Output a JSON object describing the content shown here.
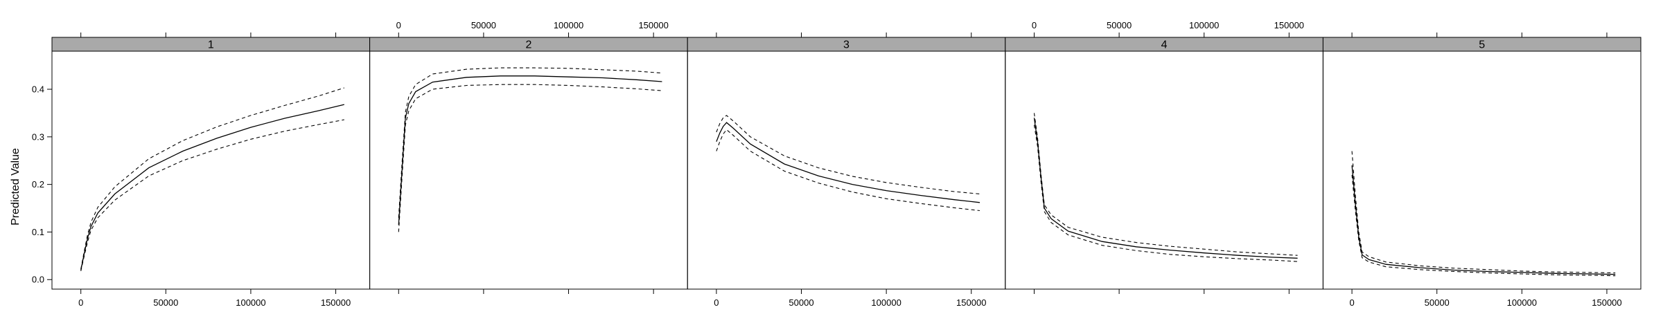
{
  "chart_data": {
    "type": "line",
    "ylabel": "Predicted Value",
    "xlabel": "",
    "xlim": [
      -17000,
      170000
    ],
    "ylim": [
      -0.02,
      0.48
    ],
    "x_ticks": [
      0,
      50000,
      100000,
      150000
    ],
    "x_tick_labels": [
      "0",
      "50000",
      "100000",
      "150000"
    ],
    "y_ticks": [
      0.0,
      0.1,
      0.2,
      0.3,
      0.4
    ],
    "y_tick_labels": [
      "0.0",
      "0.1",
      "0.2",
      "0.3",
      "0.4"
    ],
    "x": [
      0,
      2000,
      4000,
      6000,
      10000,
      20000,
      40000,
      60000,
      80000,
      100000,
      120000,
      140000,
      155000
    ],
    "panels": [
      {
        "label": "1",
        "x_axis": "bottom",
        "fit": [
          0.02,
          0.055,
          0.088,
          0.112,
          0.14,
          0.18,
          0.235,
          0.27,
          0.297,
          0.32,
          0.339,
          0.355,
          0.368
        ],
        "upper": [
          0.022,
          0.06,
          0.095,
          0.121,
          0.152,
          0.195,
          0.254,
          0.292,
          0.321,
          0.345,
          0.366,
          0.386,
          0.403
        ],
        "lower": [
          0.018,
          0.05,
          0.08,
          0.104,
          0.13,
          0.167,
          0.218,
          0.25,
          0.274,
          0.295,
          0.312,
          0.326,
          0.336
        ]
      },
      {
        "label": "2",
        "x_axis": "top",
        "fit": [
          0.115,
          0.23,
          0.34,
          0.37,
          0.395,
          0.415,
          0.425,
          0.428,
          0.428,
          0.426,
          0.424,
          0.42,
          0.416
        ],
        "upper": [
          0.13,
          0.245,
          0.352,
          0.385,
          0.41,
          0.432,
          0.442,
          0.445,
          0.445,
          0.444,
          0.441,
          0.438,
          0.434
        ],
        "lower": [
          0.1,
          0.215,
          0.325,
          0.355,
          0.38,
          0.4,
          0.408,
          0.41,
          0.41,
          0.408,
          0.405,
          0.401,
          0.397
        ]
      },
      {
        "label": "3",
        "x_axis": "bottom",
        "fit": [
          0.29,
          0.308,
          0.322,
          0.33,
          0.318,
          0.285,
          0.243,
          0.218,
          0.2,
          0.187,
          0.177,
          0.168,
          0.162
        ],
        "upper": [
          0.31,
          0.328,
          0.34,
          0.345,
          0.333,
          0.3,
          0.26,
          0.235,
          0.217,
          0.204,
          0.194,
          0.185,
          0.18
        ],
        "lower": [
          0.27,
          0.29,
          0.306,
          0.315,
          0.303,
          0.27,
          0.228,
          0.203,
          0.184,
          0.17,
          0.16,
          0.151,
          0.145
        ]
      },
      {
        "label": "4",
        "x_axis": "top",
        "fit": [
          0.34,
          0.29,
          0.215,
          0.15,
          0.128,
          0.102,
          0.08,
          0.069,
          0.062,
          0.056,
          0.051,
          0.047,
          0.045
        ],
        "upper": [
          0.35,
          0.298,
          0.222,
          0.157,
          0.136,
          0.11,
          0.089,
          0.078,
          0.07,
          0.064,
          0.058,
          0.054,
          0.051
        ],
        "lower": [
          0.325,
          0.28,
          0.206,
          0.143,
          0.12,
          0.094,
          0.072,
          0.061,
          0.053,
          0.048,
          0.044,
          0.041,
          0.038
        ]
      },
      {
        "label": "5",
        "x_axis": "bottom",
        "fit": [
          0.24,
          0.16,
          0.09,
          0.052,
          0.042,
          0.032,
          0.025,
          0.02,
          0.017,
          0.015,
          0.013,
          0.012,
          0.011
        ],
        "upper": [
          0.27,
          0.178,
          0.1,
          0.058,
          0.048,
          0.037,
          0.029,
          0.024,
          0.021,
          0.018,
          0.016,
          0.015,
          0.014
        ],
        "lower": [
          0.22,
          0.145,
          0.082,
          0.046,
          0.037,
          0.027,
          0.021,
          0.017,
          0.014,
          0.012,
          0.01,
          0.009,
          0.008
        ]
      }
    ]
  }
}
